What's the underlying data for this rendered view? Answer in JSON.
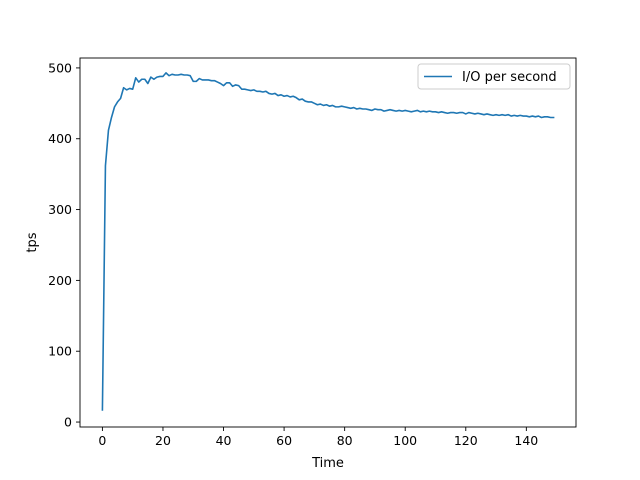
{
  "chart_data": {
    "type": "line",
    "title": "",
    "xlabel": "Time",
    "ylabel": "tps",
    "xlim": [
      -7.4,
      156.4
    ],
    "ylim": [
      -7.0,
      514.0
    ],
    "xticks": [
      0,
      20,
      40,
      60,
      80,
      100,
      120,
      140
    ],
    "yticks": [
      0,
      100,
      200,
      300,
      400,
      500
    ],
    "grid": false,
    "legend_position": "top-right",
    "series": [
      {
        "name": "I/O per second",
        "color": "#1f77b4",
        "x": [
          0,
          1,
          2,
          3,
          4,
          5,
          6,
          7,
          8,
          9,
          10,
          11,
          12,
          13,
          14,
          15,
          16,
          17,
          18,
          19,
          20,
          21,
          22,
          23,
          24,
          25,
          26,
          27,
          28,
          29,
          30,
          31,
          32,
          33,
          34,
          35,
          36,
          37,
          38,
          39,
          40,
          41,
          42,
          43,
          44,
          45,
          46,
          47,
          48,
          49,
          50,
          51,
          52,
          53,
          54,
          55,
          56,
          57,
          58,
          59,
          60,
          61,
          62,
          63,
          64,
          65,
          66,
          67,
          68,
          69,
          70,
          71,
          72,
          73,
          74,
          75,
          76,
          77,
          78,
          79,
          80,
          81,
          82,
          83,
          84,
          85,
          86,
          87,
          88,
          89,
          90,
          91,
          92,
          93,
          94,
          95,
          96,
          97,
          98,
          99,
          100,
          101,
          102,
          103,
          104,
          105,
          106,
          107,
          108,
          109,
          110,
          111,
          112,
          113,
          114,
          115,
          116,
          117,
          118,
          119,
          120,
          121,
          122,
          123,
          124,
          125,
          126,
          127,
          128,
          129,
          130,
          131,
          132,
          133,
          134,
          135,
          136,
          137,
          138,
          139,
          140,
          141,
          142,
          143,
          144,
          145,
          146,
          147,
          148,
          149
        ],
        "y": [
          17,
          362,
          412,
          430,
          445,
          452,
          457,
          472,
          469,
          471,
          470,
          486,
          480,
          484,
          484,
          478,
          487,
          484,
          487,
          488,
          488,
          493,
          489,
          491,
          490,
          490,
          491,
          490,
          490,
          489,
          481,
          481,
          485,
          483,
          483,
          483,
          482,
          482,
          480,
          478,
          475,
          479,
          479,
          474,
          476,
          475,
          470,
          470,
          469,
          468,
          469,
          467,
          467,
          466,
          467,
          464,
          463,
          464,
          461,
          462,
          460,
          461,
          459,
          460,
          458,
          455,
          456,
          453,
          452,
          452,
          450,
          448,
          449,
          447,
          448,
          446,
          447,
          445,
          445,
          446,
          445,
          444,
          443,
          444,
          442,
          443,
          442,
          442,
          441,
          440,
          442,
          441,
          441,
          439,
          440,
          441,
          440,
          439,
          440,
          439,
          440,
          439,
          438,
          439,
          440,
          438,
          439,
          438,
          439,
          438,
          438,
          437,
          438,
          437,
          436,
          437,
          437,
          436,
          437,
          437,
          435,
          437,
          436,
          435,
          436,
          435,
          434,
          435,
          434,
          433,
          434,
          433,
          434,
          433,
          434,
          432,
          433,
          432,
          433,
          432,
          432,
          431,
          432,
          431,
          432,
          430,
          431,
          431,
          430,
          430
        ]
      }
    ]
  }
}
